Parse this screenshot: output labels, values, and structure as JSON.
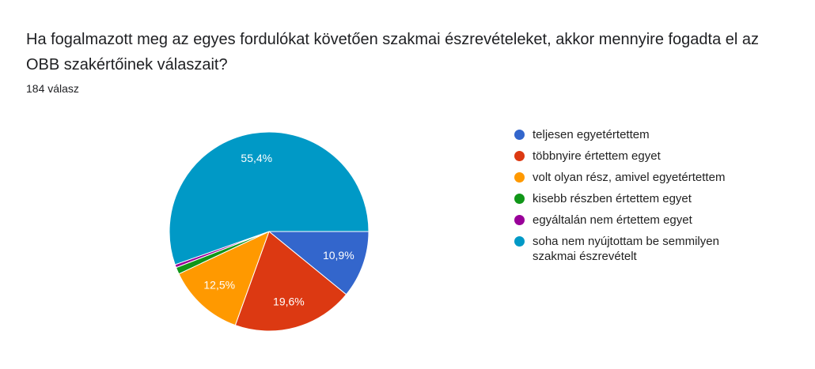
{
  "chart_data": {
    "type": "pie",
    "title": "Ha fogalmazott meg az egyes fordulókat követően szakmai észrevételeket, akkor mennyire fogadta el az OBB szakértőinek válaszait?",
    "subtitle": "184 válasz",
    "categories": [
      "teljesen egyetértettem",
      "többnyire értettem egyet",
      "volt olyan rész, amivel egyetértettem",
      "kisebb részben értettem egyet",
      "egyáltalán nem értettem egyet",
      "soha nem nyújtottam be semmilyen szakmai észrevételt"
    ],
    "values": [
      10.9,
      19.6,
      12.5,
      1.1,
      0.5,
      55.4
    ],
    "value_labels": [
      "10,9%",
      "19,6%",
      "12,5%",
      null,
      null,
      "55,4%"
    ],
    "colors": [
      "#3366cc",
      "#dc3912",
      "#ff9900",
      "#109618",
      "#990099",
      "#0099c6"
    ]
  }
}
